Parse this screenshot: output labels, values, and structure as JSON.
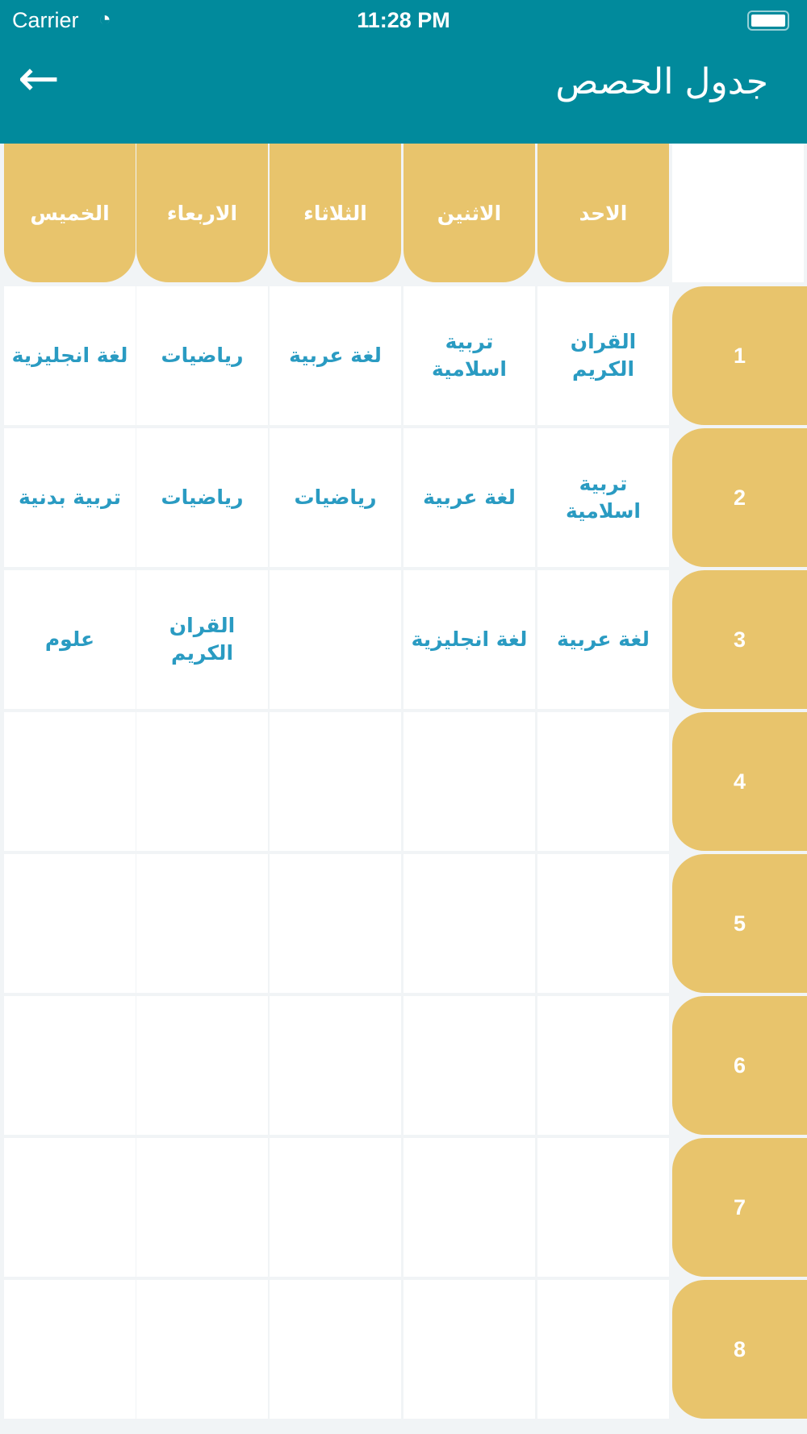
{
  "status_bar": {
    "carrier": "Carrier",
    "time": "11:28 PM",
    "wifi_icon": "wifi-icon",
    "battery_icon": "battery-icon"
  },
  "header": {
    "title": "جدول الحصص",
    "back_icon": "arrow-left-icon"
  },
  "colors": {
    "header": "#018a9c",
    "gold": "#e8c46c",
    "subject_text": "#2a9bc2"
  },
  "days": [
    "الاحد",
    "الاثنين",
    "الثلاثاء",
    "الاربعاء",
    "الخميس"
  ],
  "periods": [
    "1",
    "2",
    "3",
    "4",
    "5",
    "6",
    "7",
    "8"
  ],
  "schedule": [
    [
      "القران الكريم",
      "تربية اسلامية",
      "لغة عربية",
      "رياضيات",
      "لغة انجليزية"
    ],
    [
      "تربية اسلامية",
      "لغة عربية",
      "رياضيات",
      "رياضيات",
      "تربية بدنية"
    ],
    [
      "لغة عربية",
      "لغة انجليزية",
      "",
      "القران الكريم",
      "علوم"
    ],
    [
      "",
      "",
      "",
      "",
      ""
    ],
    [
      "",
      "",
      "",
      "",
      ""
    ],
    [
      "",
      "",
      "",
      "",
      ""
    ],
    [
      "",
      "",
      "",
      "",
      ""
    ],
    [
      "",
      "",
      "",
      "",
      ""
    ]
  ]
}
